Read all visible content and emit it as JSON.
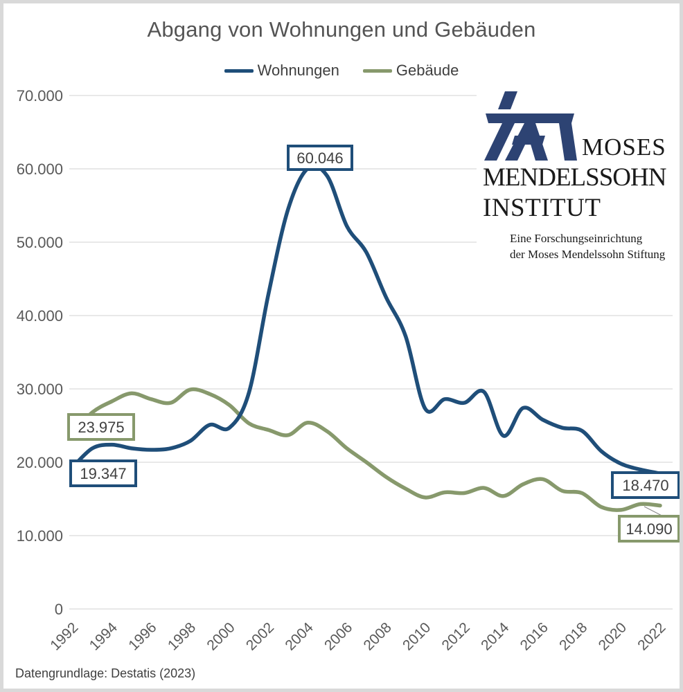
{
  "title": "Abgang von Wohnungen und Gebäuden",
  "legend": {
    "position": "top",
    "items": [
      {
        "label": "Wohnungen",
        "color": "#1f4e79"
      },
      {
        "label": "Gebäude",
        "color": "#87996c"
      }
    ]
  },
  "source_note": "Datengrundlage: Destatis (2023)",
  "logo": {
    "line1": "MOSES",
    "line2": "MENDELSSOHN",
    "line3": "INSTITUT",
    "sub1": "Eine Forschungseinrichtung",
    "sub2": "der Moses Mendelssohn Stiftung",
    "color": "#2d4373"
  },
  "colors": {
    "grid": "#d9d9d9",
    "axis_text": "#595959",
    "label_text": "#404040",
    "frame_border": "#d9d9d9",
    "background": "#ffffff"
  },
  "chart_data": {
    "type": "line",
    "title": "Abgang von Wohnungen und Gebäuden",
    "grid": true,
    "legend_position": "top",
    "ylim": [
      0,
      70000
    ],
    "y_ticks": [
      0,
      10000,
      20000,
      30000,
      40000,
      50000,
      60000,
      70000
    ],
    "y_tick_labels": [
      "0",
      "10.000",
      "20.000",
      "30.000",
      "40.000",
      "50.000",
      "60.000",
      "70.000"
    ],
    "x": [
      1992,
      1993,
      1994,
      1995,
      1996,
      1997,
      1998,
      1999,
      2000,
      2001,
      2002,
      2003,
      2004,
      2005,
      2006,
      2007,
      2008,
      2009,
      2010,
      2011,
      2012,
      2013,
      2014,
      2015,
      2016,
      2017,
      2018,
      2019,
      2020,
      2021,
      2022
    ],
    "x_tick_labels": [
      "1992",
      "1994",
      "1996",
      "1998",
      "2000",
      "2002",
      "2004",
      "2006",
      "2008",
      "2010",
      "2012",
      "2014",
      "2016",
      "2018",
      "2020",
      "2022"
    ],
    "series": [
      {
        "name": "Wohnungen",
        "color": "#1f4e79",
        "values": [
          19347,
          21900,
          22400,
          21900,
          21700,
          21900,
          22900,
          25100,
          24700,
          29500,
          43000,
          54500,
          60046,
          59000,
          52200,
          48600,
          42500,
          37200,
          27300,
          28600,
          28100,
          29600,
          23600,
          27400,
          25800,
          24700,
          24300,
          21500,
          19800,
          19000,
          18470
        ]
      },
      {
        "name": "Gebäude",
        "color": "#87996c",
        "values": [
          23975,
          26800,
          28300,
          29400,
          28600,
          28100,
          29900,
          29300,
          27800,
          25300,
          24400,
          23700,
          25400,
          24200,
          21900,
          20000,
          18000,
          16400,
          15200,
          15900,
          15800,
          16500,
          15400,
          17000,
          17700,
          16100,
          15800,
          13900,
          13500,
          14300,
          14090
        ]
      }
    ],
    "annotations": [
      {
        "id": "gebaeude-1992",
        "series": "Gebäude",
        "year": 1992,
        "value": 23975,
        "label": "23.975"
      },
      {
        "id": "wohnungen-1992",
        "series": "Wohnungen",
        "year": 1992,
        "value": 19347,
        "label": "19.347"
      },
      {
        "id": "wohnungen-peak",
        "series": "Wohnungen",
        "year": 2004,
        "value": 60046,
        "label": "60.046"
      },
      {
        "id": "wohnungen-2022",
        "series": "Wohnungen",
        "year": 2022,
        "value": 18470,
        "label": "18.470"
      },
      {
        "id": "gebaeude-2022",
        "series": "Gebäude",
        "year": 2022,
        "value": 14090,
        "label": "14.090"
      }
    ]
  }
}
